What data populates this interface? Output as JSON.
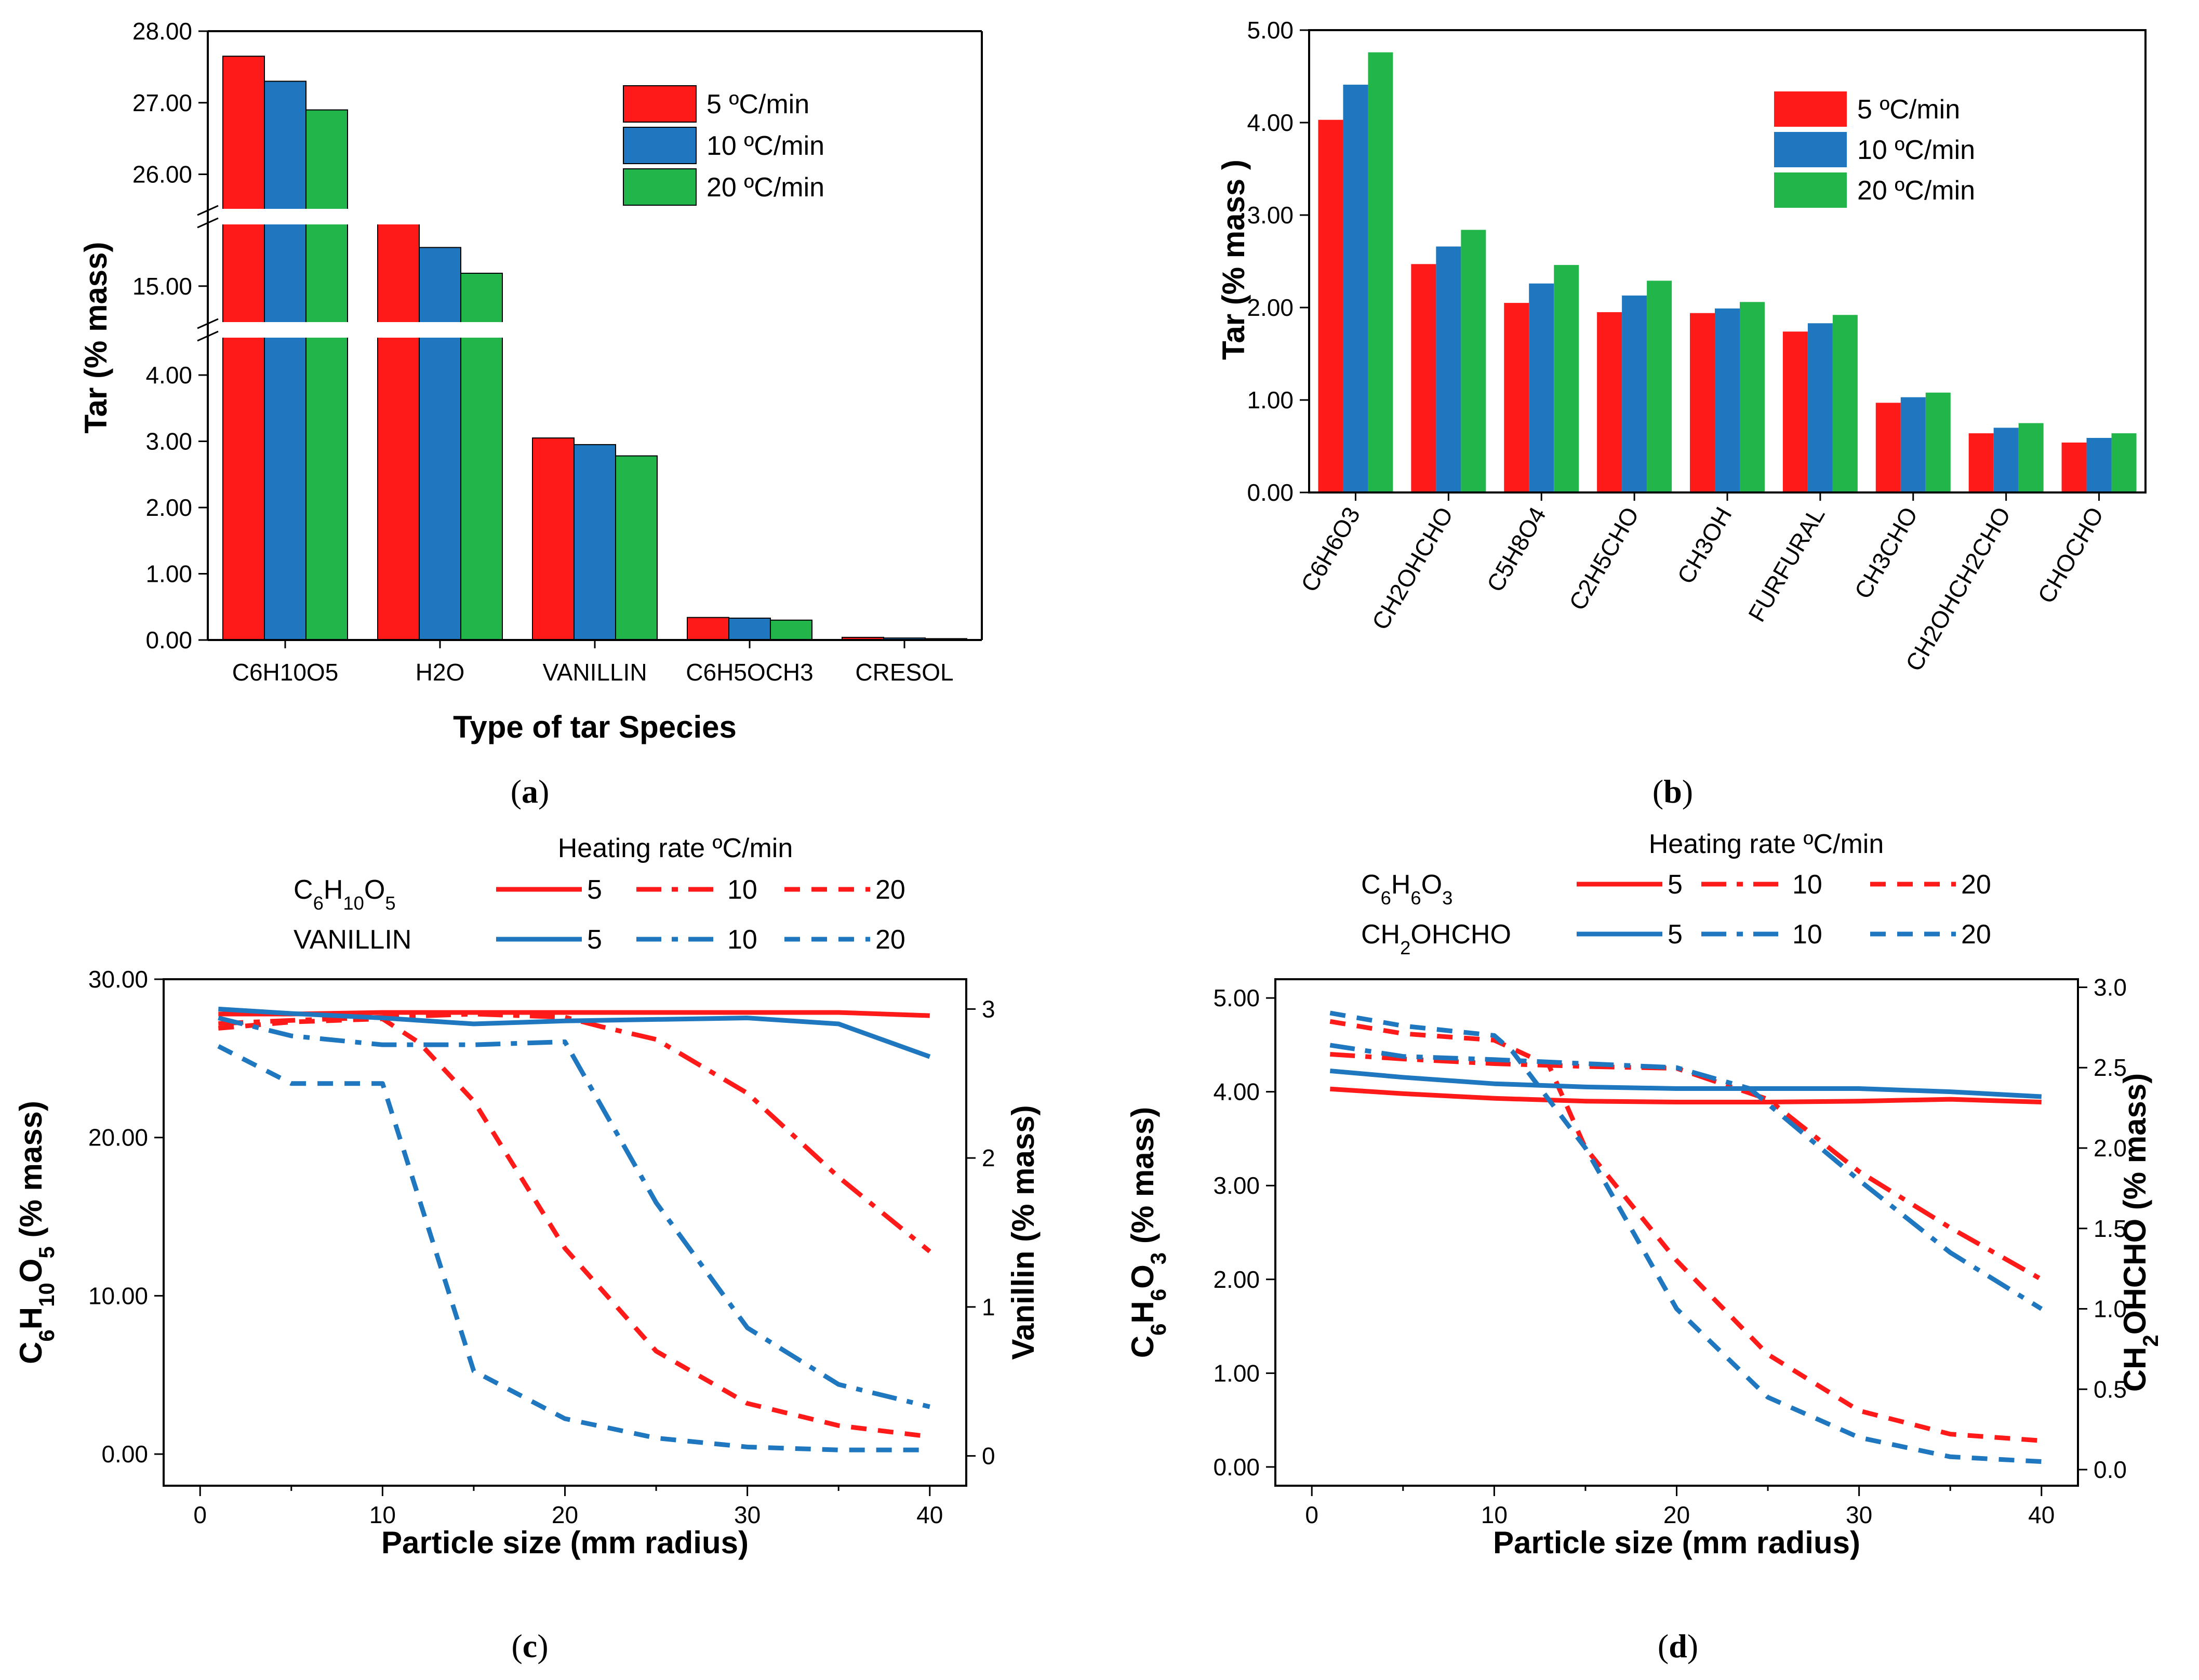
{
  "colors": {
    "red": "#ff1a1a",
    "blue": "#1f77bf",
    "green": "#22b54a",
    "axis": "#000000"
  },
  "chart_data": [
    {
      "id": "a",
      "type": "bar",
      "panel_label": "a",
      "xlabel": "Type of tar Species",
      "ylabel": "Tar (% mass)",
      "y_axis": "broken",
      "y_segments": [
        [
          0,
          4.8
        ],
        [
          14.2,
          16.2
        ],
        [
          25.3,
          28.0
        ]
      ],
      "y_ticks": [
        "0.00",
        "1.00",
        "2.00",
        "3.00",
        "4.00",
        "15.00",
        "26.00",
        "27.00",
        "28.00"
      ],
      "categories": [
        "C6H10O5",
        "H2O",
        "VANILLIN",
        "C6H5OCH3",
        "CRESOL"
      ],
      "series": [
        {
          "name": "5 ºC/min",
          "color": "red",
          "values": [
            27.65,
            16.0,
            3.05,
            0.34,
            0.04
          ]
        },
        {
          "name": "10 ºC/min",
          "color": "blue",
          "values": [
            27.3,
            15.6,
            2.95,
            0.33,
            0.03
          ]
        },
        {
          "name": "20 ºC/min",
          "color": "green",
          "values": [
            26.9,
            15.2,
            2.78,
            0.3,
            0.02
          ]
        }
      ],
      "legend_position": "top-right"
    },
    {
      "id": "b",
      "type": "bar",
      "panel_label": "b",
      "xlabel": "",
      "ylabel": "Tar  (% mass )",
      "ylim": [
        0,
        5
      ],
      "y_ticks": [
        "0.00",
        "1.00",
        "2.00",
        "3.00",
        "4.00",
        "5.00"
      ],
      "categories": [
        "C6H6O3",
        "CH2OHCHO",
        "C5H8O4",
        "C2H5CHO",
        "CH3OH",
        "FURFURAL",
        "CH3CHO",
        "CH2OHCH2CHO",
        "CHOCHO"
      ],
      "series": [
        {
          "name": "5 ºC/min",
          "color": "red",
          "values": [
            4.03,
            2.47,
            2.05,
            1.95,
            1.94,
            1.74,
            0.97,
            0.64,
            0.54
          ]
        },
        {
          "name": "10 ºC/min",
          "color": "blue",
          "values": [
            4.41,
            2.66,
            2.26,
            2.13,
            1.99,
            1.83,
            1.03,
            0.7,
            0.59
          ]
        },
        {
          "name": "20 ºC/min",
          "color": "green",
          "values": [
            4.76,
            2.84,
            2.46,
            2.29,
            2.06,
            1.92,
            1.08,
            0.75,
            0.64
          ]
        }
      ],
      "legend_position": "top-right"
    },
    {
      "id": "c",
      "type": "line",
      "panel_label": "c",
      "xlabel": "Particle size (mm radius)",
      "ylabel_left": "C6H10O5 (% mass)",
      "ylabel_right": "Vanillin  (% mass)",
      "xlim": [
        -2,
        42
      ],
      "ylim_left": [
        -2,
        30
      ],
      "ylim_right": [
        -0.2,
        3.2
      ],
      "x_ticks": [
        "0",
        "10",
        "20",
        "30",
        "40"
      ],
      "y_ticks_left": [
        "0.00",
        "10.00",
        "20.00",
        "30.00"
      ],
      "y_ticks_right": [
        "0",
        "1",
        "2",
        "3"
      ],
      "legend_title": "Heating rate ºC/min",
      "legend_rows": [
        {
          "label": "C6H10O5",
          "color": "red",
          "rates": [
            "5",
            "10",
            "20"
          ]
        },
        {
          "label": "VANILLIN",
          "color": "blue",
          "rates": [
            "5",
            "10",
            "20"
          ]
        }
      ],
      "series": [
        {
          "name": "C6H10O5 5",
          "axis": "left",
          "color": "red",
          "dash": "solid",
          "x": [
            1,
            5,
            10,
            15,
            20,
            25,
            30,
            35,
            40
          ],
          "y": [
            27.8,
            27.8,
            27.9,
            27.9,
            27.9,
            27.9,
            27.9,
            27.9,
            27.7
          ]
        },
        {
          "name": "C6H10O5 10",
          "axis": "left",
          "color": "red",
          "dash": "dashdot",
          "x": [
            1,
            5,
            10,
            15,
            20,
            22,
            25,
            30,
            35,
            40
          ],
          "y": [
            27.2,
            27.4,
            27.6,
            27.8,
            27.6,
            27.0,
            26.2,
            22.8,
            17.5,
            12.8
          ]
        },
        {
          "name": "C6H10O5 20",
          "axis": "left",
          "color": "red",
          "dash": "dash",
          "x": [
            1,
            5,
            10,
            12,
            15,
            20,
            25,
            30,
            35,
            40
          ],
          "y": [
            26.9,
            27.3,
            27.5,
            26.0,
            22.3,
            13.0,
            6.5,
            3.2,
            1.8,
            1.1
          ]
        },
        {
          "name": "VANILLIN 5",
          "axis": "right",
          "color": "blue",
          "dash": "solid",
          "x": [
            1,
            5,
            10,
            15,
            20,
            25,
            30,
            35,
            40
          ],
          "y": [
            3.0,
            2.97,
            2.94,
            2.9,
            2.92,
            2.93,
            2.94,
            2.9,
            2.68
          ]
        },
        {
          "name": "VANILLIN 10",
          "axis": "right",
          "color": "blue",
          "dash": "dashdot",
          "x": [
            1,
            5,
            10,
            15,
            20,
            25,
            30,
            35,
            40
          ],
          "y": [
            2.94,
            2.82,
            2.76,
            2.76,
            2.78,
            1.7,
            0.86,
            0.48,
            0.33
          ]
        },
        {
          "name": "VANILLIN 20",
          "axis": "right",
          "color": "blue",
          "dash": "dash",
          "x": [
            1,
            5,
            10,
            15,
            20,
            25,
            30,
            35,
            40
          ],
          "y": [
            2.75,
            2.5,
            2.5,
            0.57,
            0.25,
            0.12,
            0.06,
            0.04,
            0.04
          ]
        }
      ]
    },
    {
      "id": "d",
      "type": "line",
      "panel_label": "d",
      "xlabel": "Particle size (mm radius)",
      "ylabel_left": "C6H6O3  (% mass)",
      "ylabel_right": "CH2OHCHO (% mass)",
      "xlim": [
        -2,
        42
      ],
      "ylim_left": [
        -0.2,
        5.2
      ],
      "ylim_right": [
        -0.1,
        3.05
      ],
      "x_ticks": [
        "0",
        "10",
        "20",
        "30",
        "40"
      ],
      "y_ticks_left": [
        "0.00",
        "1.00",
        "2.00",
        "3.00",
        "4.00",
        "5.00"
      ],
      "y_ticks_right": [
        "0.0",
        "0.5",
        "1.0",
        "1.5",
        "2.0",
        "2.5",
        "3.0"
      ],
      "legend_title": "Heating rate ºC/min",
      "legend_rows": [
        {
          "label": "C6H6O3",
          "color": "red",
          "rates": [
            "5",
            "10",
            "20"
          ]
        },
        {
          "label": "CH2OHCHO",
          "color": "blue",
          "rates": [
            "5",
            "10",
            "20"
          ]
        }
      ],
      "series": [
        {
          "name": "C6H6O3 5",
          "axis": "left",
          "color": "red",
          "dash": "solid",
          "x": [
            1,
            5,
            10,
            15,
            20,
            25,
            30,
            35,
            40
          ],
          "y": [
            4.03,
            3.98,
            3.93,
            3.9,
            3.89,
            3.89,
            3.9,
            3.92,
            3.89
          ]
        },
        {
          "name": "C6H6O3 10",
          "axis": "left",
          "color": "red",
          "dash": "dashdot",
          "x": [
            1,
            5,
            10,
            15,
            20,
            25,
            30,
            35,
            40
          ],
          "y": [
            4.4,
            4.35,
            4.3,
            4.27,
            4.25,
            3.92,
            3.15,
            2.55,
            2.0
          ]
        },
        {
          "name": "C6H6O3 20",
          "axis": "left",
          "color": "red",
          "dash": "dash",
          "x": [
            1,
            5,
            10,
            13,
            15,
            20,
            25,
            30,
            35,
            40
          ],
          "y": [
            4.75,
            4.62,
            4.55,
            4.28,
            3.4,
            2.2,
            1.2,
            0.6,
            0.35,
            0.28
          ]
        },
        {
          "name": "CH2OHCHO 5",
          "axis": "right",
          "color": "blue",
          "dash": "solid",
          "x": [
            1,
            5,
            10,
            15,
            20,
            25,
            30,
            35,
            40
          ],
          "y": [
            2.48,
            2.44,
            2.4,
            2.38,
            2.37,
            2.37,
            2.37,
            2.35,
            2.32
          ]
        },
        {
          "name": "CH2OHCHO 10",
          "axis": "right",
          "color": "blue",
          "dash": "dashdot",
          "x": [
            1,
            5,
            10,
            12,
            20,
            24,
            30,
            35,
            40
          ],
          "y": [
            2.64,
            2.57,
            2.55,
            2.54,
            2.5,
            2.37,
            1.8,
            1.35,
            1.0
          ]
        },
        {
          "name": "CH2OHCHO 20",
          "axis": "right",
          "color": "blue",
          "dash": "dash",
          "x": [
            1,
            5,
            10,
            11,
            15,
            20,
            25,
            30,
            35,
            40
          ],
          "y": [
            2.84,
            2.76,
            2.7,
            2.6,
            2.0,
            1.0,
            0.45,
            0.2,
            0.08,
            0.05
          ]
        }
      ]
    }
  ]
}
